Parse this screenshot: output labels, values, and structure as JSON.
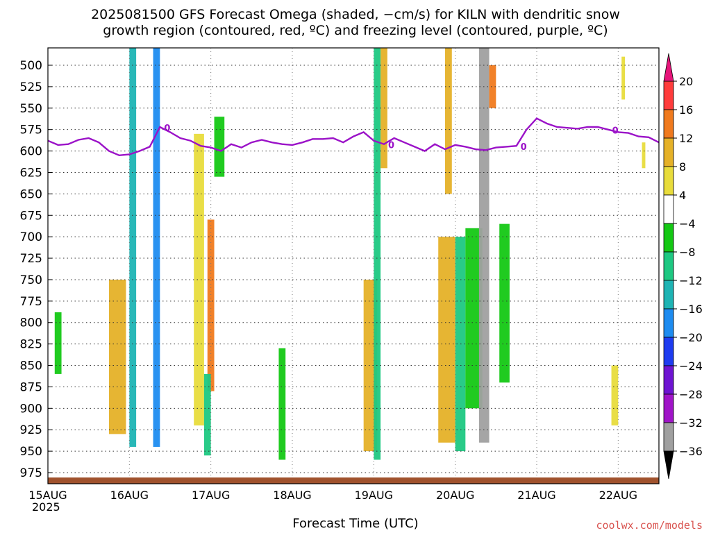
{
  "title_line1": "2025081500 GFS Forecast Omega (shaded, −cm/s) for KILN with dendritic snow",
  "title_line2": "growth region (contoured, red, ºC) and freezing level (contoured, purple, ºC)",
  "xlabel": "Forecast Time (UTC)",
  "year_label": "2025",
  "credit": "coolwx.com/models",
  "chart_data": {
    "type": "heatmap",
    "title": "2025081500 GFS Forecast Omega (shaded, −cm/s) for KILN with dendritic snow growth region (contoured, red, ºC) and freezing level (contoured, purple, ºC)",
    "xlabel": "Forecast Time (UTC)",
    "ylabel": "",
    "x_range_hours": [
      0,
      180
    ],
    "y_range_mb": [
      480,
      990
    ],
    "y_inverted": true,
    "x_ticks": [
      {
        "label": "15AUG",
        "hour": 0
      },
      {
        "label": "16AUG",
        "hour": 24
      },
      {
        "label": "17AUG",
        "hour": 48
      },
      {
        "label": "18AUG",
        "hour": 72
      },
      {
        "label": "19AUG",
        "hour": 96
      },
      {
        "label": "20AUG",
        "hour": 120
      },
      {
        "label": "21AUG",
        "hour": 144
      },
      {
        "label": "22AUG",
        "hour": 168
      }
    ],
    "y_ticks": [
      500,
      525,
      550,
      575,
      600,
      625,
      650,
      675,
      700,
      725,
      750,
      775,
      800,
      825,
      850,
      875,
      900,
      925,
      950,
      975
    ],
    "grid": true,
    "colorbar": {
      "labels": [
        "20",
        "16",
        "12",
        "8",
        "4",
        "−4",
        "−8",
        "−12",
        "−16",
        "−20",
        "−24",
        "−28",
        "−32",
        "−36"
      ],
      "segments": [
        {
          "from": 16,
          "to": 20,
          "color": "#ff3c3c"
        },
        {
          "from": 12,
          "to": 16,
          "color": "#f07a1e"
        },
        {
          "from": 8,
          "to": 12,
          "color": "#e5b128"
        },
        {
          "from": 4,
          "to": 8,
          "color": "#e8dc3c"
        },
        {
          "from": -4,
          "to": 4,
          "color": "#ffffff"
        },
        {
          "from": -8,
          "to": -4,
          "color": "#14c814"
        },
        {
          "from": -12,
          "to": -8,
          "color": "#1ec882"
        },
        {
          "from": -16,
          "to": -12,
          "color": "#1eb4b4"
        },
        {
          "from": -20,
          "to": -16,
          "color": "#1e8cf0"
        },
        {
          "from": -24,
          "to": -20,
          "color": "#1e3cf0"
        },
        {
          "from": -28,
          "to": -24,
          "color": "#6e14d2"
        },
        {
          "from": -32,
          "to": -28,
          "color": "#a014c8"
        },
        {
          "from": -36,
          "to": -32,
          "color": "#a0a0a0"
        }
      ],
      "top_arrow_color": "#e6157a",
      "bottom_arrow_color": "#000000"
    },
    "freezing_level": {
      "name": "0",
      "color": "#9b12c8",
      "hours": [
        0,
        3,
        6,
        9,
        12,
        15,
        18,
        21,
        24,
        27,
        30,
        33,
        36,
        39,
        42,
        45,
        48,
        51,
        54,
        57,
        60,
        63,
        66,
        69,
        72,
        75,
        78,
        81,
        84,
        87,
        90,
        93,
        96,
        99,
        102,
        105,
        108,
        111,
        114,
        117,
        120,
        123,
        126,
        129,
        132,
        135,
        138,
        141,
        144,
        147,
        150,
        153,
        156,
        159,
        162,
        165,
        168,
        171,
        174,
        177,
        180
      ],
      "mb": [
        588,
        593,
        592,
        587,
        585,
        590,
        600,
        605,
        604,
        600,
        595,
        572,
        578,
        585,
        588,
        594,
        596,
        600,
        592,
        596,
        590,
        587,
        590,
        592,
        593,
        590,
        586,
        586,
        585,
        590,
        583,
        578,
        588,
        592,
        585,
        590,
        595,
        600,
        592,
        598,
        593,
        595,
        598,
        599,
        596,
        595,
        594,
        575,
        562,
        568,
        572,
        573,
        574,
        572,
        572,
        575,
        578,
        579,
        583,
        584,
        590
      ]
    },
    "omega_features": [
      {
        "hour_start": 2,
        "hour_end": 4,
        "top_mb": 788,
        "bottom_mb": 860,
        "value": -6
      },
      {
        "hour_start": 18,
        "hour_end": 23,
        "top_mb": 750,
        "bottom_mb": 930,
        "value": 8
      },
      {
        "hour_start": 24,
        "hour_end": 26,
        "top_mb": 480,
        "bottom_mb": 945,
        "value": -14
      },
      {
        "hour_start": 31,
        "hour_end": 33,
        "top_mb": 480,
        "bottom_mb": 945,
        "value": -18
      },
      {
        "hour_start": 43,
        "hour_end": 46,
        "top_mb": 580,
        "bottom_mb": 920,
        "value": 6
      },
      {
        "hour_start": 47,
        "hour_end": 49,
        "top_mb": 680,
        "bottom_mb": 880,
        "value": 14
      },
      {
        "hour_start": 49,
        "hour_end": 52,
        "top_mb": 560,
        "bottom_mb": 630,
        "value": -6
      },
      {
        "hour_start": 46,
        "hour_end": 48,
        "top_mb": 860,
        "bottom_mb": 955,
        "value": -10
      },
      {
        "hour_start": 68,
        "hour_end": 70,
        "top_mb": 830,
        "bottom_mb": 960,
        "value": -8
      },
      {
        "hour_start": 93,
        "hour_end": 97,
        "top_mb": 750,
        "bottom_mb": 950,
        "value": 8
      },
      {
        "hour_start": 96,
        "hour_end": 98,
        "top_mb": 480,
        "bottom_mb": 960,
        "value": -12
      },
      {
        "hour_start": 98,
        "hour_end": 100,
        "top_mb": 480,
        "bottom_mb": 620,
        "value": 10
      },
      {
        "hour_start": 115,
        "hour_end": 120,
        "top_mb": 700,
        "bottom_mb": 940,
        "value": 8
      },
      {
        "hour_start": 117,
        "hour_end": 119,
        "top_mb": 480,
        "bottom_mb": 650,
        "value": 10
      },
      {
        "hour_start": 120,
        "hour_end": 123,
        "top_mb": 700,
        "bottom_mb": 950,
        "value": -10
      },
      {
        "hour_start": 123,
        "hour_end": 128,
        "top_mb": 690,
        "bottom_mb": 900,
        "value": -6
      },
      {
        "hour_start": 127,
        "hour_end": 130,
        "top_mb": 480,
        "bottom_mb": 940,
        "value": -36
      },
      {
        "hour_start": 133,
        "hour_end": 136,
        "top_mb": 685,
        "bottom_mb": 870,
        "value": -6
      },
      {
        "hour_start": 130,
        "hour_end": 132,
        "top_mb": 500,
        "bottom_mb": 550,
        "value": 12
      },
      {
        "hour_start": 166,
        "hour_end": 168,
        "top_mb": 850,
        "bottom_mb": 920,
        "value": 6
      },
      {
        "hour_start": 169,
        "hour_end": 170,
        "top_mb": 490,
        "bottom_mb": 540,
        "value": 6
      },
      {
        "hour_start": 175,
        "hour_end": 176,
        "top_mb": 590,
        "bottom_mb": 620,
        "value": 6
      }
    ],
    "terrain_color": "#a0522d"
  }
}
